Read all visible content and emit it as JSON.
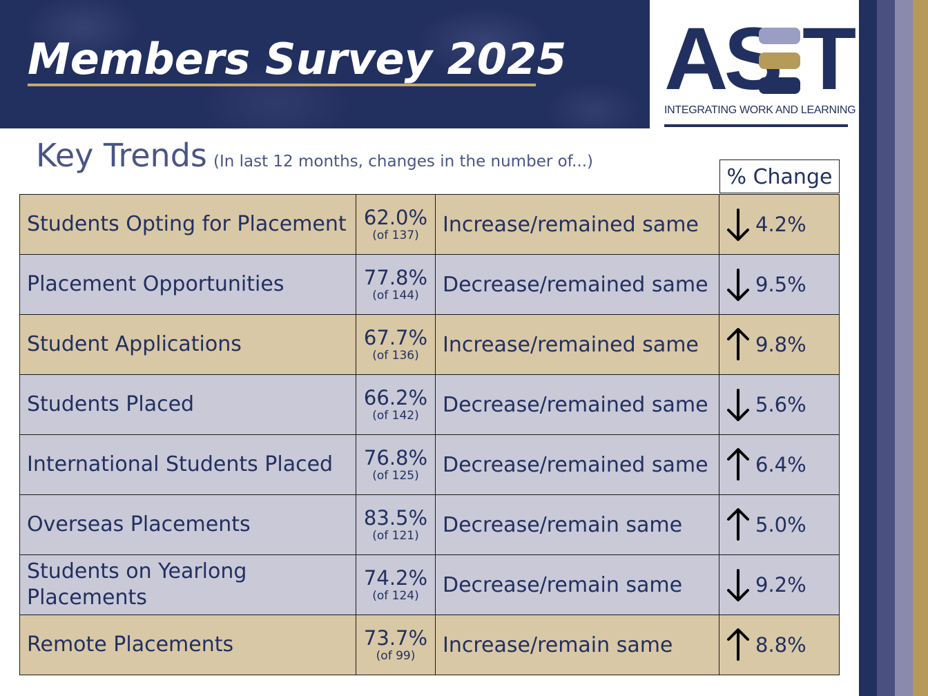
{
  "header": {
    "title": "Members Survey 2025"
  },
  "logo": {
    "letters": "AS",
    "letter_t": "T",
    "tagline": "INTEGRATING WORK AND LEARNING",
    "bar_colors": [
      "#9b9ec4",
      "#b59a5a",
      "#22305f"
    ]
  },
  "heading": {
    "title": "Key Trends",
    "subtitle": "(In last 12 months, changes in the number of...)"
  },
  "table": {
    "change_header": "% Change",
    "rows": [
      {
        "label": "Students Opting for Placement",
        "percent": "62.0%",
        "of": "(of 137)",
        "description": "Increase/remained same",
        "direction": "down",
        "change": "4.2%",
        "tone": "tan"
      },
      {
        "label": "Placement Opportunities",
        "percent": "77.8%",
        "of": "(of 144)",
        "description": "Decrease/remained same",
        "direction": "down",
        "change": "9.5%",
        "tone": "lav"
      },
      {
        "label": "Student Applications",
        "percent": "67.7%",
        "of": "(of 136)",
        "description": "Increase/remained same",
        "direction": "up",
        "change": "9.8%",
        "tone": "tan"
      },
      {
        "label": "Students Placed",
        "percent": "66.2%",
        "of": "(of 142)",
        "description": "Decrease/remained same",
        "direction": "down",
        "change": "5.6%",
        "tone": "lav"
      },
      {
        "label": "International Students Placed",
        "percent": "76.8%",
        "of": "(of 125)",
        "description": "Decrease/remained same",
        "direction": "up",
        "change": "6.4%",
        "tone": "lav"
      },
      {
        "label": "Overseas Placements",
        "percent": "83.5%",
        "of": "(of 121)",
        "description": "Decrease/remain same",
        "direction": "up",
        "change": "5.0%",
        "tone": "lav"
      },
      {
        "label": "Students on Yearlong Placements",
        "percent": "74.2%",
        "of": "(of 124)",
        "description": "Decrease/remain same",
        "direction": "down",
        "change": "9.2%",
        "tone": "lav"
      },
      {
        "label": "Remote Placements",
        "percent": "73.7%",
        "of": "(of 99)",
        "description": "Increase/remain same",
        "direction": "up",
        "change": "8.8%",
        "tone": "tan"
      }
    ]
  },
  "colors": {
    "navy": "#22305f",
    "gold": "#b59a5a",
    "tan_row": "#d9c8a6",
    "lavender_row": "#c9c9d8",
    "stripes": [
      "#22305f",
      "#4a5180",
      "#8a8aac",
      "#b59a5a"
    ]
  }
}
